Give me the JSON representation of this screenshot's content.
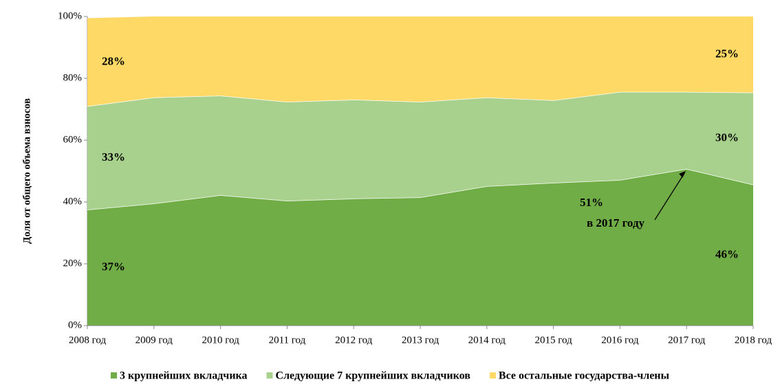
{
  "chart_data": {
    "type": "stacked_area",
    "y_label": "Доля от общего объема взносов",
    "categories": [
      "2008 год",
      "2009 год",
      "2010 год",
      "2011 год",
      "2012 год",
      "2013 год",
      "2014 год",
      "2015 год",
      "2016 год",
      "2017 год",
      "2018 год"
    ],
    "series": [
      {
        "name": "3 крупнейших вкладчика",
        "color": "#70ad47",
        "values": [
          37.49,
          39.5,
          42.2,
          40.4,
          41.1,
          41.5,
          45.1,
          46.2,
          47.1,
          50.7,
          45.6
        ],
        "value_labels": [
          "37%",
          null,
          null,
          null,
          null,
          null,
          null,
          null,
          null,
          null,
          "46%"
        ]
      },
      {
        "name": "Следующие 7 крупнейших вкладчиков",
        "color": "#a9d18e",
        "values": [
          33.49,
          34.3,
          32.2,
          32.0,
          32.0,
          30.9,
          28.7,
          26.7,
          28.5,
          24.9,
          29.8
        ],
        "value_labels": [
          "33%",
          null,
          null,
          null,
          null,
          null,
          null,
          null,
          null,
          null,
          "30%"
        ]
      },
      {
        "name": "Все остальные государства-члены",
        "color": "#ffd966",
        "values": [
          28.49,
          26.2,
          25.6,
          27.6,
          26.9,
          27.6,
          26.2,
          27.1,
          24.4,
          24.4,
          24.6
        ],
        "value_labels": [
          "28%",
          null,
          null,
          null,
          null,
          null,
          null,
          null,
          null,
          null,
          "25%"
        ]
      }
    ],
    "annotation": [
      "51%",
      "в 2017 году"
    ],
    "ylim": [
      0,
      100
    ],
    "yticks": [
      {
        "value": 0,
        "label": "0%"
      },
      {
        "value": 20,
        "label": "20%"
      },
      {
        "value": 40,
        "label": "40%"
      },
      {
        "value": 60,
        "label": "60%"
      },
      {
        "value": 80,
        "label": "80%"
      },
      {
        "value": 100,
        "label": "100%"
      }
    ],
    "legend": "bottom"
  }
}
